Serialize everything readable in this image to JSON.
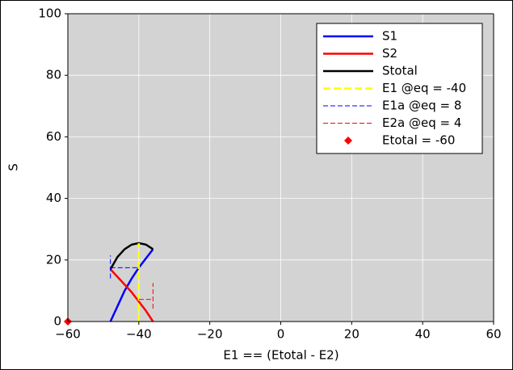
{
  "chart_data": {
    "type": "line",
    "xlabel": "E1 == (Etotal - E2)",
    "ylabel": "S",
    "xlim": [
      -60,
      60
    ],
    "ylim": [
      0,
      100
    ],
    "xticks": [
      {
        "value": -60,
        "label": "−60"
      },
      {
        "value": -40,
        "label": "−40"
      },
      {
        "value": -20,
        "label": "−20"
      },
      0,
      20,
      40,
      60
    ],
    "yticks": [
      0,
      20,
      40,
      60,
      80,
      100
    ],
    "grid": true,
    "legend": "upper right",
    "background": "#d3d3d3",
    "series": [
      {
        "name": "S1",
        "color": "#0000ff",
        "style": "solid",
        "x": [
          -48,
          -46,
          -44,
          -42,
          -40,
          -38,
          -36
        ],
        "values": [
          0,
          5,
          10,
          14,
          17.5,
          20.5,
          23.5
        ]
      },
      {
        "name": "S2",
        "color": "#ff0000",
        "style": "solid",
        "x": [
          -48,
          -46,
          -44,
          -42,
          -40,
          -38,
          -36
        ],
        "values": [
          17,
          14.5,
          12,
          9.5,
          6.5,
          3.5,
          0
        ]
      },
      {
        "name": "Stotal",
        "color": "#000000",
        "style": "solid",
        "x": [
          -48,
          -46,
          -44,
          -42,
          -40,
          -38,
          -36
        ],
        "values": [
          17,
          21,
          23.5,
          25,
          25.5,
          25,
          23.5
        ]
      },
      {
        "name": "E1 @eq = -40",
        "color": "#ffff00",
        "style": "dashed-thick",
        "x": [
          -40,
          -40
        ],
        "values": [
          0,
          25.5
        ]
      },
      {
        "name": "E1a @eq = 8",
        "color": "#0000ff",
        "style": "dashed",
        "x": [
          -48,
          -48,
          null,
          -48,
          -40
        ],
        "values": [
          14,
          21.5,
          null,
          17.5,
          17.5
        ]
      },
      {
        "name": "E2a @eq = 4",
        "color": "#ff0000",
        "style": "dashed",
        "x": [
          -36,
          -36,
          null,
          -40,
          -36
        ],
        "values": [
          4.2,
          12.5,
          null,
          7.2,
          7.2
        ]
      },
      {
        "name": "Etotal = -60",
        "color": "#ff0000",
        "style": "marker",
        "x": [
          -60
        ],
        "values": [
          0
        ]
      }
    ]
  }
}
